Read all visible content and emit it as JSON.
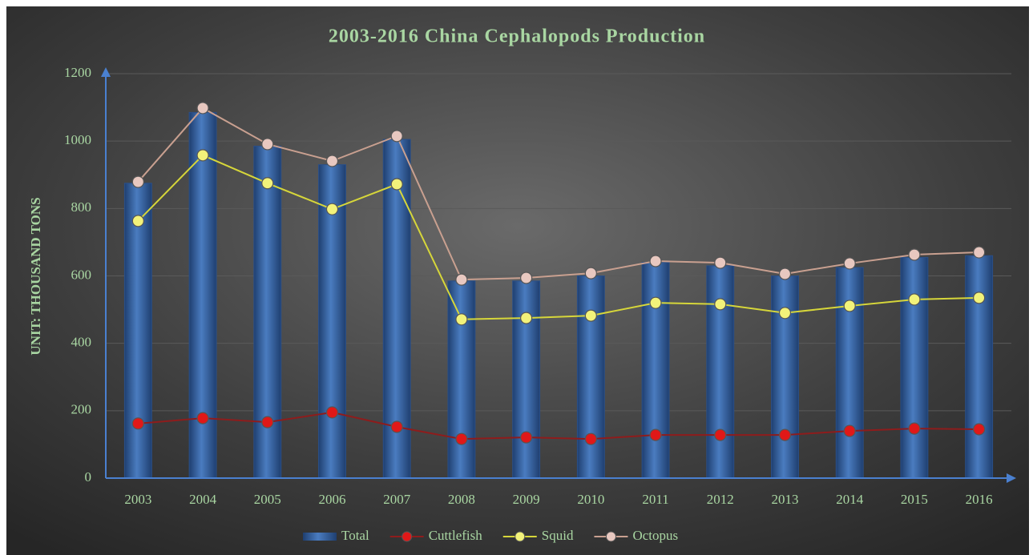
{
  "chart_data": {
    "type": "bar",
    "title": "2003-2016 China Cephalopods Production",
    "y_label": "UNIT: THOUSAND TONS",
    "categories": [
      "2003",
      "2004",
      "2005",
      "2006",
      "2007",
      "2008",
      "2009",
      "2010",
      "2011",
      "2012",
      "2013",
      "2014",
      "2015",
      "2016"
    ],
    "series": [
      {
        "name": "Total",
        "type": "bar",
        "color": "#3c6aa8",
        "values": [
          875,
          1085,
          985,
          930,
          1005,
          585,
          585,
          600,
          640,
          630,
          600,
          625,
          655,
          660
        ]
      },
      {
        "name": "Cuttlefish",
        "type": "line",
        "color": "#8e1c1c",
        "marker_color": "#e01818",
        "values": [
          162,
          178,
          166,
          195,
          152,
          116,
          121,
          116,
          128,
          128,
          128,
          140,
          147,
          145
        ]
      },
      {
        "name": "Squid",
        "type": "line",
        "color": "#d6d63a",
        "marker_color": "#f2f27a",
        "values": [
          763,
          958,
          875,
          798,
          872,
          471,
          475,
          482,
          520,
          516,
          490,
          511,
          530,
          535
        ]
      },
      {
        "name": "Octopus",
        "type": "line",
        "color": "#c9a090",
        "marker_color": "#e8c8c0",
        "values": [
          879,
          1098,
          991,
          941,
          1015,
          589,
          594,
          608,
          644,
          639,
          606,
          637,
          663,
          670
        ]
      }
    ],
    "ylim": [
      0,
      1200
    ],
    "yticks": [
      0,
      200,
      400,
      600,
      800,
      1000,
      1200
    ],
    "grid": true,
    "legend": "bottom"
  }
}
